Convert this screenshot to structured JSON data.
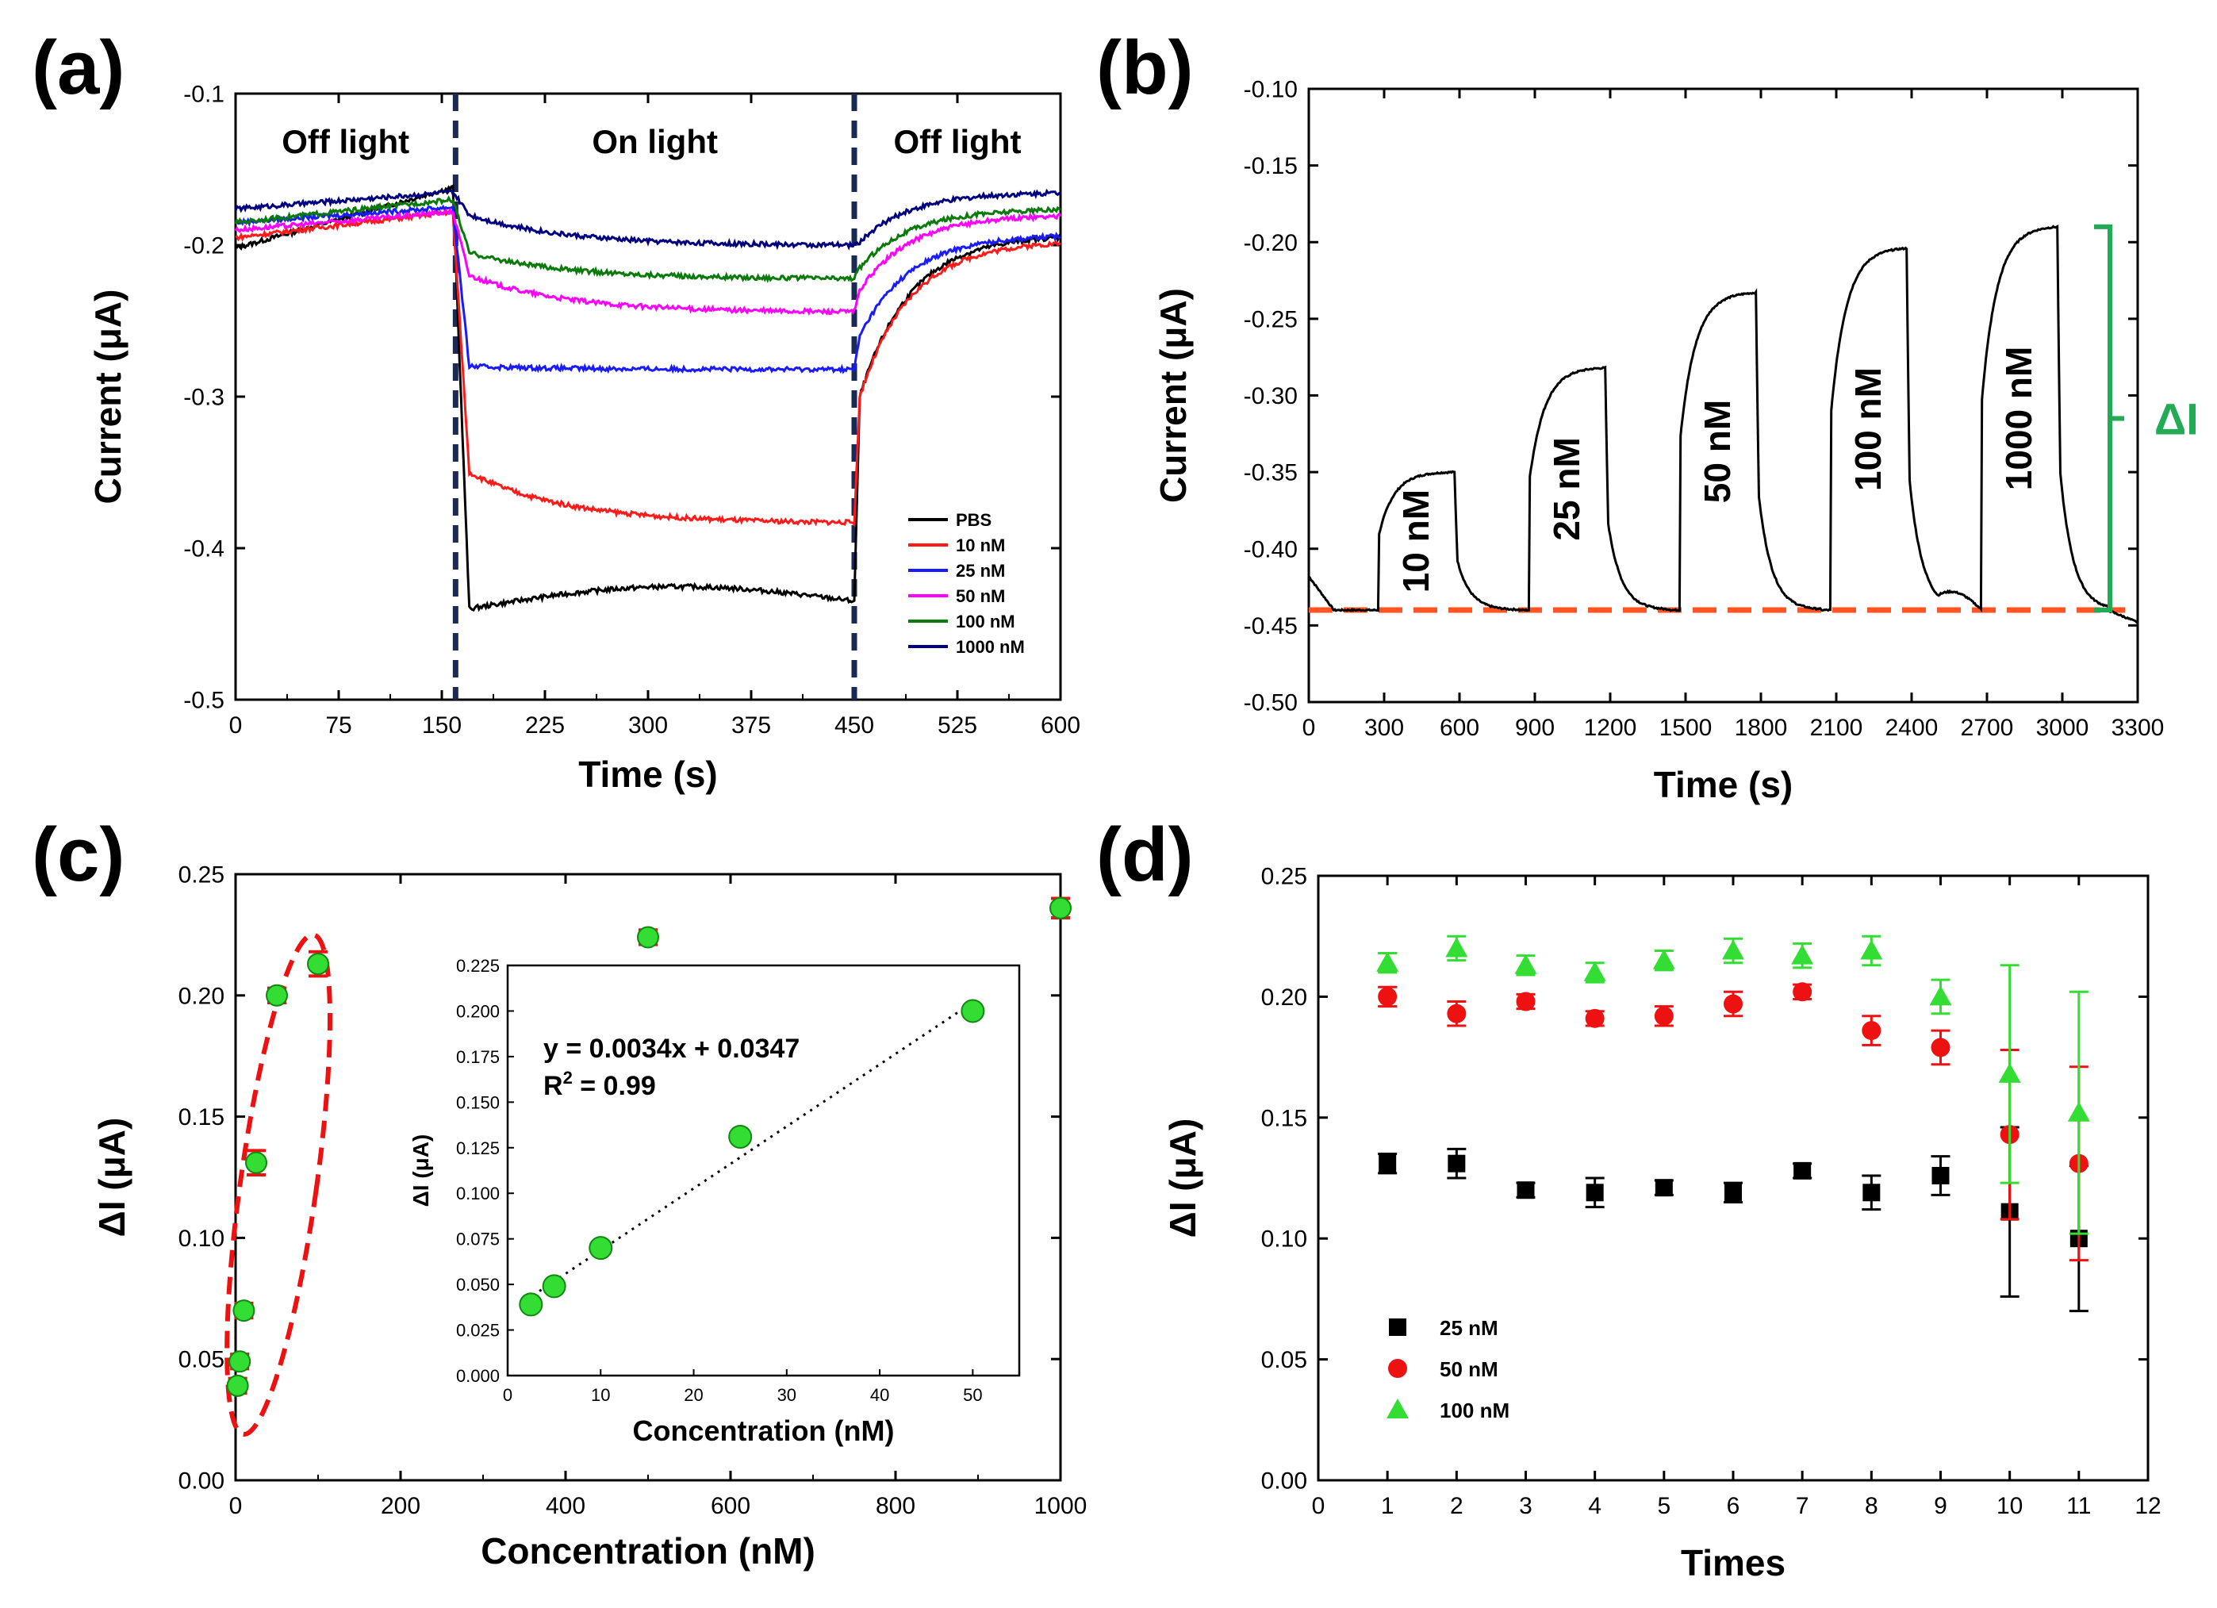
{
  "colors": {
    "PBS": "#000000",
    "10 nM": "#ff1a1a",
    "25 nM": "#1a1aff",
    "50 nM": "#ff00ff",
    "100 nM": "#0a7a0a",
    "1000 nM": "#000080",
    "green": "#33dd33",
    "red": "#ee1111",
    "dash": "#1a2a55",
    "baseline": "#ff5522",
    "delta": "#22aa55"
  },
  "chart_data": [
    {
      "panel": "(a)",
      "type": "line",
      "xlabel": "Time (s)",
      "ylabel": "Current (μA)",
      "xlim": [
        0,
        600
      ],
      "ylim": [
        -0.5,
        -0.1
      ],
      "xticks": [
        0,
        75,
        150,
        225,
        300,
        375,
        450,
        525,
        600
      ],
      "yticks": [
        -0.5,
        -0.4,
        -0.3,
        -0.2,
        -0.1
      ],
      "markers": [
        160,
        450
      ],
      "annotations": [
        "Off light",
        "On light",
        "Off light"
      ],
      "legend_position": "bottom-right",
      "series": [
        {
          "name": "PBS",
          "start": -0.202,
          "offEnd": -0.162,
          "onMin": -0.44,
          "onEnd": -0.435,
          "recoverStart": -0.3,
          "final": -0.193
        },
        {
          "name": "10 nM",
          "start": -0.195,
          "offEnd": -0.178,
          "onMin": -0.35,
          "onEnd": -0.383,
          "recoverStart": -0.3,
          "final": -0.197
        },
        {
          "name": "25 nM",
          "start": -0.185,
          "offEnd": -0.175,
          "onMin": -0.28,
          "onEnd": -0.282,
          "recoverStart": -0.26,
          "final": -0.193
        },
        {
          "name": "50 nM",
          "start": -0.19,
          "offEnd": -0.178,
          "onMin": -0.22,
          "onEnd": -0.244,
          "recoverStart": -0.23,
          "final": -0.18
        },
        {
          "name": "100 nM",
          "start": -0.185,
          "offEnd": -0.17,
          "onMin": -0.205,
          "onEnd": -0.222,
          "recoverStart": -0.215,
          "final": -0.176
        },
        {
          "name": "1000 nM",
          "start": -0.176,
          "offEnd": -0.165,
          "onMin": -0.18,
          "onEnd": -0.2,
          "recoverStart": -0.198,
          "final": -0.165
        }
      ]
    },
    {
      "panel": "(b)",
      "type": "line",
      "xlabel": "Time (s)",
      "ylabel": "Current (μA)",
      "xlim": [
        0,
        3300
      ],
      "ylim": [
        -0.5,
        -0.1
      ],
      "xticks": [
        0,
        300,
        600,
        900,
        1200,
        1500,
        1800,
        2100,
        2400,
        2700,
        3000,
        3300
      ],
      "yticks": [
        -0.5,
        -0.45,
        -0.4,
        -0.35,
        -0.3,
        -0.25,
        -0.2,
        -0.15,
        -0.1
      ],
      "baseline": -0.44,
      "pulses": [
        {
          "label": "10 nM",
          "t_on": 280,
          "t_off": 580,
          "peak": -0.35
        },
        {
          "label": "25 nM",
          "t_on": 880,
          "t_off": 1180,
          "peak": -0.282
        },
        {
          "label": "50 nM",
          "t_on": 1480,
          "t_off": 1780,
          "peak": -0.233
        },
        {
          "label": "100 nM",
          "t_on": 2080,
          "t_off": 2380,
          "peak": -0.204
        },
        {
          "label": "1000 nM",
          "t_on": 2680,
          "t_off": 2980,
          "peak": -0.19
        }
      ],
      "delta_label": "ΔI"
    },
    {
      "panel": "(c)",
      "type": "scatter",
      "xlabel": "Concentration (nM)",
      "ylabel": "ΔI (μA)",
      "xlim": [
        0,
        1000
      ],
      "ylim": [
        0,
        0.25
      ],
      "xticks": [
        0,
        200,
        400,
        600,
        800,
        1000
      ],
      "yticks": [
        0.0,
        0.05,
        0.1,
        0.15,
        0.2,
        0.25
      ],
      "points": [
        {
          "x": 2.5,
          "y": 0.039,
          "err": 0.003
        },
        {
          "x": 5,
          "y": 0.049,
          "err": 0.003
        },
        {
          "x": 10,
          "y": 0.07,
          "err": 0.003
        },
        {
          "x": 25,
          "y": 0.131,
          "err": 0.005
        },
        {
          "x": 50,
          "y": 0.2,
          "err": 0.003
        },
        {
          "x": 100,
          "y": 0.213,
          "err": 0.005
        },
        {
          "x": 500,
          "y": 0.224,
          "err": 0.003
        },
        {
          "x": 1000,
          "y": 0.236,
          "err": 0.004
        }
      ],
      "inset": {
        "xlabel": "Concentration (nM)",
        "ylabel": "ΔI (μA)",
        "xlim": [
          0,
          55
        ],
        "ylim": [
          0,
          0.225
        ],
        "xticks": [
          0,
          10,
          20,
          30,
          40,
          50
        ],
        "yticks": [
          0.0,
          0.025,
          0.05,
          0.075,
          0.1,
          0.125,
          0.15,
          0.175,
          0.2,
          0.225
        ],
        "points": [
          {
            "x": 2.5,
            "y": 0.039
          },
          {
            "x": 5,
            "y": 0.049
          },
          {
            "x": 10,
            "y": 0.07
          },
          {
            "x": 25,
            "y": 0.131
          },
          {
            "x": 50,
            "y": 0.2
          }
        ],
        "fit": {
          "slope": 0.0034,
          "intercept": 0.0347
        },
        "equation": "y = 0.0034x +  0.0347",
        "r2_label": "R",
        "r2_sup": "2",
        "r2_value": " = 0.99"
      }
    },
    {
      "panel": "(d)",
      "type": "scatter",
      "xlabel": "Times",
      "ylabel": "ΔI (μA)",
      "xlim": [
        0,
        12
      ],
      "ylim": [
        0,
        0.25
      ],
      "xticks": [
        0,
        1,
        2,
        3,
        4,
        5,
        6,
        7,
        8,
        9,
        10,
        11,
        12
      ],
      "yticks": [
        0.0,
        0.05,
        0.1,
        0.15,
        0.2,
        0.25
      ],
      "legend_position": "bottom-left",
      "series": [
        {
          "name": "25 nM",
          "marker": "square",
          "color": "#000000",
          "values": [
            0.131,
            0.131,
            0.12,
            0.119,
            0.121,
            0.119,
            0.128,
            0.119,
            0.126,
            0.111,
            0.1
          ],
          "errors": [
            0.004,
            0.006,
            0.003,
            0.006,
            0.003,
            0.004,
            0.003,
            0.007,
            0.008,
            0.035,
            0.03
          ]
        },
        {
          "name": "50 nM",
          "marker": "circle",
          "color": "#ee1111",
          "values": [
            0.2,
            0.193,
            0.198,
            0.191,
            0.192,
            0.197,
            0.202,
            0.186,
            0.179,
            0.143,
            0.131
          ],
          "errors": [
            0.004,
            0.005,
            0.003,
            0.003,
            0.004,
            0.005,
            0.003,
            0.006,
            0.007,
            0.035,
            0.04
          ]
        },
        {
          "name": "100 nM",
          "marker": "triangle",
          "color": "#33dd33",
          "values": [
            0.214,
            0.22,
            0.213,
            0.21,
            0.215,
            0.219,
            0.217,
            0.219,
            0.2,
            0.168,
            0.152
          ],
          "errors": [
            0.004,
            0.005,
            0.004,
            0.004,
            0.004,
            0.005,
            0.005,
            0.006,
            0.007,
            0.045,
            0.05
          ]
        }
      ]
    }
  ]
}
